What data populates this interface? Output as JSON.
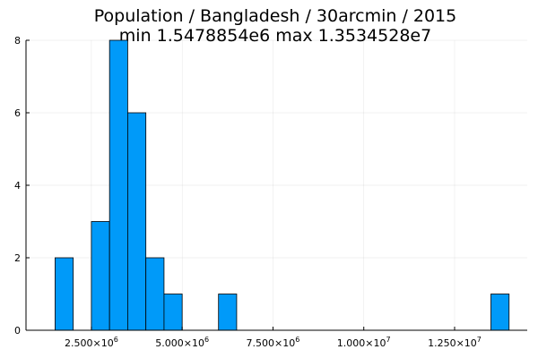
{
  "chart_data": {
    "type": "bar",
    "title": "Population / Bangladesh / 30arcmin / 2015",
    "subtitle": "min 1.5478854e6  max 1.3534528e7",
    "xlabel": "",
    "ylabel": "",
    "bin_width": 500000,
    "bins": [
      {
        "start": 1500000,
        "count": 2
      },
      {
        "start": 2000000,
        "count": 0
      },
      {
        "start": 2500000,
        "count": 3
      },
      {
        "start": 3000000,
        "count": 8
      },
      {
        "start": 3500000,
        "count": 6
      },
      {
        "start": 4000000,
        "count": 2
      },
      {
        "start": 4500000,
        "count": 1
      },
      {
        "start": 5000000,
        "count": 0
      },
      {
        "start": 5500000,
        "count": 0
      },
      {
        "start": 6000000,
        "count": 1
      },
      {
        "start": 13500000,
        "count": 1
      }
    ],
    "xlim": [
      700000,
      14500000
    ],
    "ylim": [
      0,
      8
    ],
    "x_ticks": [
      {
        "value": 2500000,
        "mantissa": "2.500×10",
        "exp": "6"
      },
      {
        "value": 5000000,
        "mantissa": "5.000×10",
        "exp": "6"
      },
      {
        "value": 7500000,
        "mantissa": "7.500×10",
        "exp": "6"
      },
      {
        "value": 10000000,
        "mantissa": "1.000×10",
        "exp": "7"
      },
      {
        "value": 12500000,
        "mantissa": "1.250×10",
        "exp": "7"
      }
    ],
    "y_ticks": [
      {
        "value": 0,
        "label": "0"
      },
      {
        "value": 2,
        "label": "2"
      },
      {
        "value": 4,
        "label": "4"
      },
      {
        "value": 6,
        "label": "6"
      },
      {
        "value": 8,
        "label": "8"
      }
    ],
    "grid": true,
    "legend": "none",
    "bar_color": "#009af9",
    "edge_color": "#000000"
  }
}
